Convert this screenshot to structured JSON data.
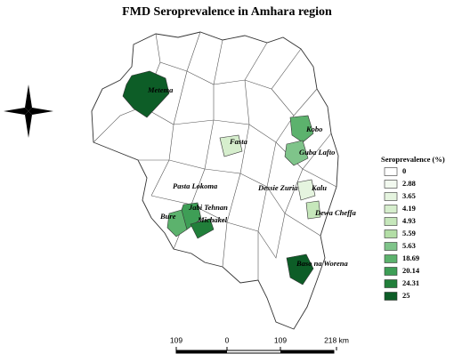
{
  "title": "FMD Seroprevalence in Amhara region",
  "places": [
    "Metema",
    "Fasta",
    "Kobo",
    "Guba Lafto",
    "Pasta Lokoma",
    "Dessie Zuria",
    "Kalu",
    "Dewa Cheffa",
    "Jabi Tehnan",
    "Bure",
    "Michakel",
    "Baso na Worena"
  ],
  "legend": {
    "title": "Seroprevalence (%)",
    "values": [
      0,
      2.88,
      3.65,
      4.19,
      4.93,
      5.59,
      5.63,
      18.69,
      20.14,
      24.31,
      25
    ],
    "colors": [
      "#ffffff",
      "#f2f9ef",
      "#e5f4df",
      "#d6eecd",
      "#c6e7bb",
      "#b3dea6",
      "#7fc48a",
      "#5cb26d",
      "#3e9e56",
      "#217f3a",
      "#0d5d27"
    ]
  },
  "scale_bar": [
    "109",
    "0",
    "109",
    "218 km"
  ]
}
